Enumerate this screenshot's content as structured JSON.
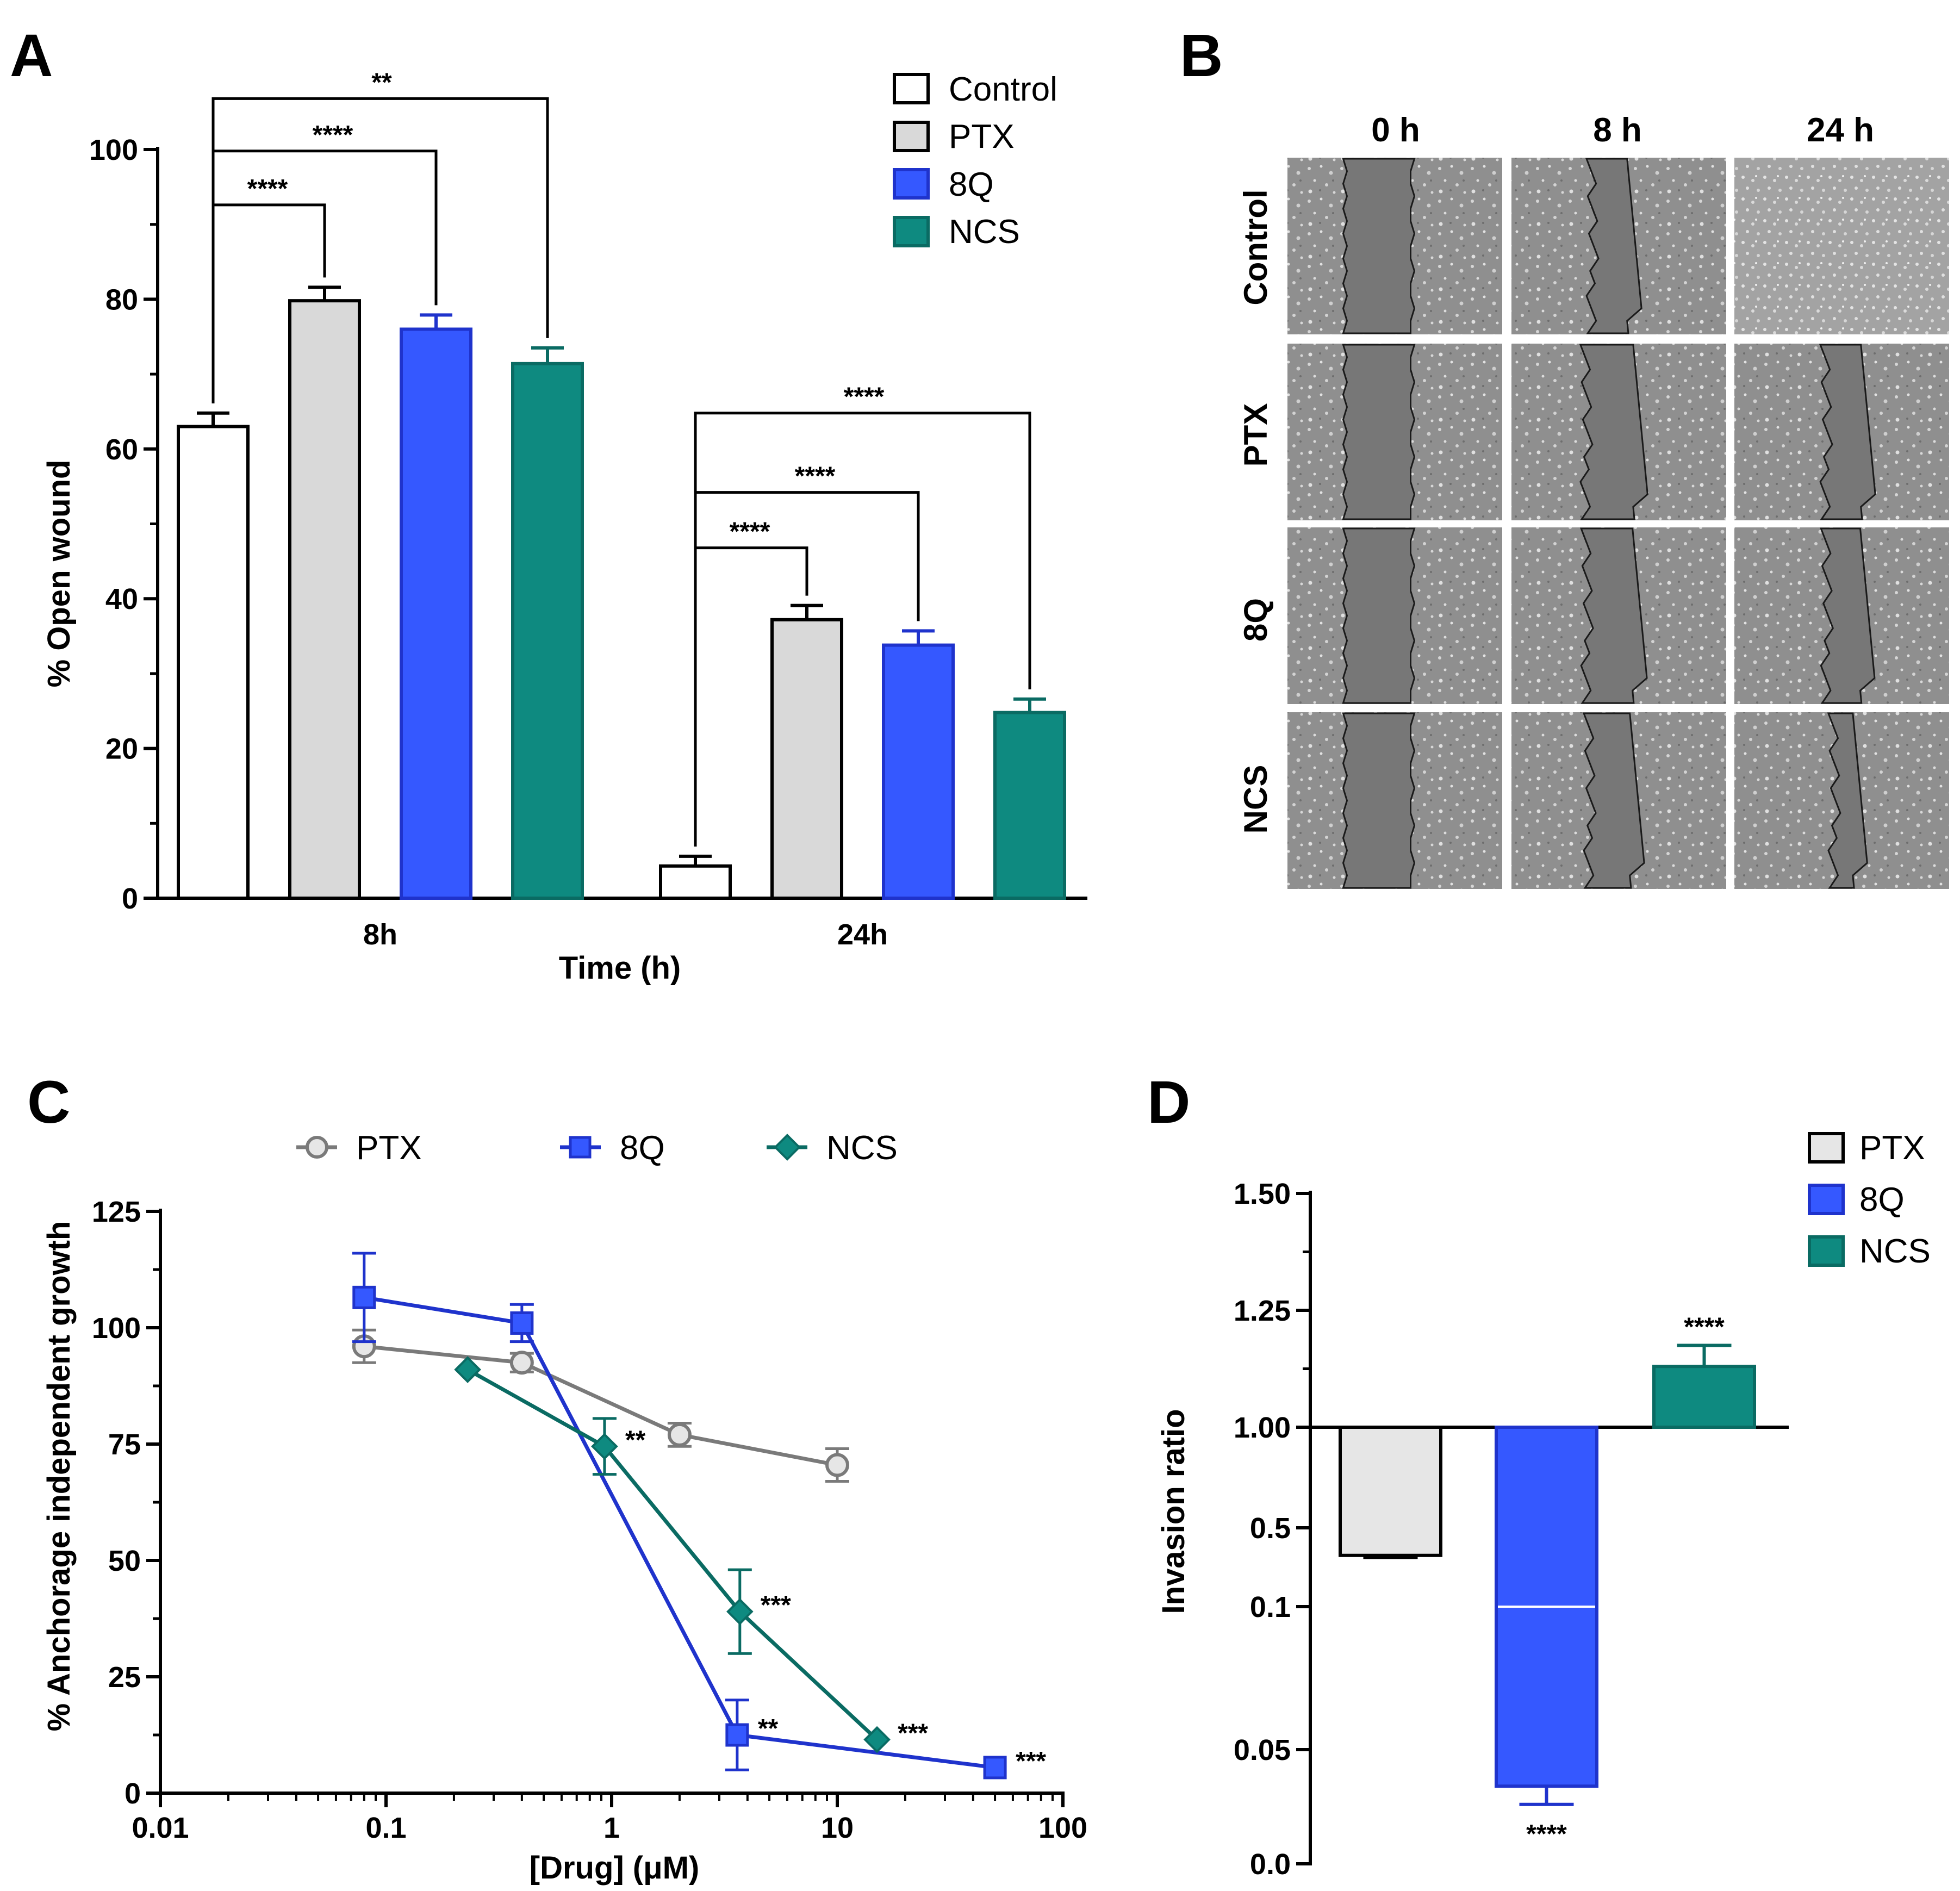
{
  "panels": {
    "a": "A",
    "b": "B",
    "c": "C",
    "d": "D"
  },
  "colors": {
    "control": "#ffffff",
    "ptx": "#d9d9d9",
    "q8": "#3558ff",
    "ncs": "#0e8a80",
    "ptx_line": "#7a7a7a",
    "q8_dark": "#1f33cc",
    "ncs_dark": "#0a6b63",
    "ptx_light": "#e6e6e6"
  },
  "chart_data": [
    {
      "type": "bar",
      "panel": "A",
      "categories": [
        "8h",
        "24h"
      ],
      "xlabel": "Time (h)",
      "ylabel": "% Open wound",
      "ylim": [
        0,
        100
      ],
      "yticks": [
        "0",
        "20",
        "40",
        "60",
        "80",
        "100"
      ],
      "legend_position": "top-right",
      "series": [
        {
          "name": "Control",
          "values": [
            63,
            4.3
          ],
          "errors": [
            1.8,
            1.3
          ]
        },
        {
          "name": "PTX",
          "values": [
            79.8,
            37.2
          ],
          "errors": [
            1.8,
            1.9
          ]
        },
        {
          "name": "8Q",
          "values": [
            76,
            33.8
          ],
          "errors": [
            1.9,
            1.9
          ]
        },
        {
          "name": "NCS",
          "values": [
            71.4,
            24.8
          ],
          "errors": [
            2.1,
            1.8
          ]
        }
      ],
      "annotations": [
        {
          "group": "8h",
          "from": "Control",
          "to": "PTX",
          "text": "****"
        },
        {
          "group": "8h",
          "from": "Control",
          "to": "8Q",
          "text": "****"
        },
        {
          "group": "8h",
          "from": "Control",
          "to": "NCS",
          "text": "**"
        },
        {
          "group": "24h",
          "from": "Control",
          "to": "PTX",
          "text": "****"
        },
        {
          "group": "24h",
          "from": "Control",
          "to": "8Q",
          "text": "****"
        },
        {
          "group": "24h",
          "from": "Control",
          "to": "NCS",
          "text": "****"
        }
      ]
    },
    {
      "type": "image-grid",
      "panel": "B",
      "columns": [
        "0 h",
        "8 h",
        "24 h"
      ],
      "rows": [
        "Control",
        "PTX",
        "8Q",
        "NCS"
      ],
      "wound_open": [
        [
          1,
          0.62,
          0
        ],
        [
          1,
          0.8,
          0.62
        ],
        [
          1,
          0.78,
          0.6
        ],
        [
          1,
          0.7,
          0.38
        ]
      ]
    },
    {
      "type": "line",
      "panel": "C",
      "xscale": "log",
      "xlim": [
        0.01,
        100
      ],
      "xticks": [
        "0.01",
        "0.1",
        "1",
        "10",
        "100"
      ],
      "ylim": [
        0,
        125
      ],
      "yticks": [
        "0",
        "25",
        "50",
        "75",
        "100",
        "125"
      ],
      "xlabel": "[Drug] (μM)",
      "ylabel": "% Anchorage independent growth",
      "legend_position": "top",
      "series": [
        {
          "name": "PTX",
          "marker": "circle",
          "x": [
            0.08,
            0.4,
            2,
            10
          ],
          "y": [
            96,
            92.5,
            77,
            70.5
          ],
          "errors": [
            3.5,
            2,
            2.5,
            3.5
          ],
          "labels": [
            "",
            "",
            "",
            ""
          ]
        },
        {
          "name": "8Q",
          "marker": "square",
          "x": [
            0.08,
            0.4,
            3.6,
            50
          ],
          "y": [
            106.5,
            101,
            12.5,
            5.5
          ],
          "errors": [
            9.5,
            4,
            7.5,
            0
          ],
          "labels": [
            "",
            "",
            "**",
            "***"
          ]
        },
        {
          "name": "NCS",
          "marker": "diamond",
          "x": [
            0.23,
            0.93,
            3.7,
            15
          ],
          "y": [
            91,
            74.5,
            39,
            11.5
          ],
          "errors": [
            0,
            6,
            9,
            0
          ],
          "labels": [
            "",
            "**",
            "***",
            "***"
          ]
        }
      ]
    },
    {
      "type": "bar",
      "panel": "D",
      "categories": [
        "PTX",
        "8Q",
        "NCS"
      ],
      "ylabel": "Invasion ratio",
      "baseline": 1.0,
      "yticks": [
        "0.0",
        "0.05",
        "0.1",
        "0.5",
        "1.00",
        "1.25",
        "1.50"
      ],
      "legend_position": "top-right",
      "values": [
        0.36,
        0.034,
        1.13
      ],
      "errors": [
        0.01,
        0.008,
        0.045
      ],
      "labels": [
        "",
        "****",
        "****"
      ]
    }
  ]
}
